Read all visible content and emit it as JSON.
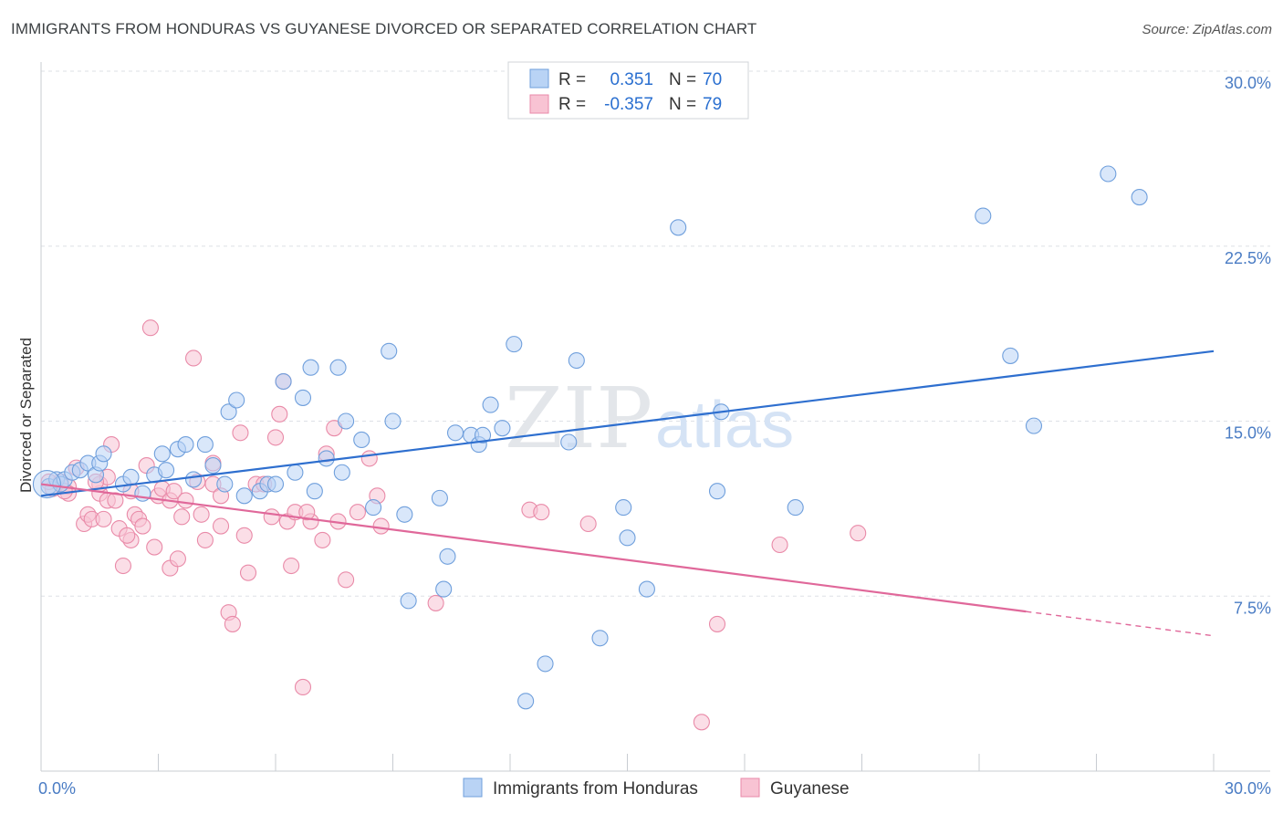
{
  "title": "IMMIGRANTS FROM HONDURAS VS GUYANESE DIVORCED OR SEPARATED CORRELATION CHART",
  "source": "Source: ZipAtlas.com",
  "watermark": {
    "zip": "ZIP",
    "atlas": "atlas"
  },
  "colors": {
    "blue_fill": "#b9d3f5",
    "blue_stroke": "#6f9fdc",
    "blue_line": "#2e6fcf",
    "pink_fill": "#f8c3d3",
    "pink_stroke": "#e98aa8",
    "pink_line": "#e0689a",
    "grid": "#dde1e6",
    "tick_text": "#4a7cc4"
  },
  "legend": {
    "rows": [
      {
        "r_label": "R =",
        "r_value": "0.351",
        "n_label": "N =",
        "n_value": "70"
      },
      {
        "r_label": "R =",
        "r_value": "-0.357",
        "n_label": "N =",
        "n_value": "79"
      }
    ]
  },
  "chart_data": {
    "type": "scatter",
    "ylabel": "Divorced or Separated",
    "xlim": [
      0,
      30
    ],
    "ylim": [
      0,
      30
    ],
    "y_ticks": [
      {
        "value": 7.5,
        "label": "7.5%"
      },
      {
        "value": 15,
        "label": "15.0%"
      },
      {
        "value": 22.5,
        "label": "22.5%"
      },
      {
        "value": 30,
        "label": "30.0%"
      }
    ],
    "x_ticks": [
      {
        "value": 0,
        "label": "0.0%"
      },
      {
        "value": 30,
        "label": "30.0%"
      }
    ],
    "series": [
      {
        "name": "Immigrants from Honduras",
        "color": "blue",
        "trend": {
          "x0": 0,
          "y0": 11.8,
          "x1": 30,
          "y1": 18.0,
          "solid_until": 30
        },
        "points": [
          [
            0.2,
            12.2
          ],
          [
            0.4,
            12.5
          ],
          [
            0.5,
            12.3
          ],
          [
            0.6,
            12.5
          ],
          [
            0.8,
            12.8
          ],
          [
            1.0,
            12.9
          ],
          [
            1.2,
            13.2
          ],
          [
            1.4,
            12.7
          ],
          [
            1.5,
            13.2
          ],
          [
            1.6,
            13.6
          ],
          [
            2.1,
            12.3
          ],
          [
            2.3,
            12.6
          ],
          [
            2.6,
            11.9
          ],
          [
            2.9,
            12.7
          ],
          [
            3.1,
            13.6
          ],
          [
            3.2,
            12.9
          ],
          [
            3.5,
            13.8
          ],
          [
            3.7,
            14.0
          ],
          [
            3.9,
            12.5
          ],
          [
            4.2,
            14.0
          ],
          [
            4.4,
            13.1
          ],
          [
            4.7,
            12.3
          ],
          [
            4.8,
            15.4
          ],
          [
            5.0,
            15.9
          ],
          [
            5.2,
            11.8
          ],
          [
            5.6,
            12.0
          ],
          [
            5.8,
            12.3
          ],
          [
            6.0,
            12.3
          ],
          [
            6.2,
            16.7
          ],
          [
            6.5,
            12.8
          ],
          [
            6.7,
            16.0
          ],
          [
            6.9,
            17.3
          ],
          [
            7.0,
            12.0
          ],
          [
            7.3,
            13.4
          ],
          [
            7.6,
            17.3
          ],
          [
            7.7,
            12.8
          ],
          [
            7.8,
            15.0
          ],
          [
            8.2,
            14.2
          ],
          [
            8.5,
            11.3
          ],
          [
            8.9,
            18.0
          ],
          [
            9.0,
            15.0
          ],
          [
            9.3,
            11.0
          ],
          [
            9.4,
            7.3
          ],
          [
            10.2,
            11.7
          ],
          [
            10.3,
            7.8
          ],
          [
            10.4,
            9.2
          ],
          [
            10.6,
            14.5
          ],
          [
            11.0,
            14.4
          ],
          [
            11.2,
            14.0
          ],
          [
            11.3,
            14.4
          ],
          [
            11.5,
            15.7
          ],
          [
            11.8,
            14.7
          ],
          [
            12.1,
            18.3
          ],
          [
            12.4,
            3.0
          ],
          [
            12.9,
            4.6
          ],
          [
            13.5,
            14.1
          ],
          [
            13.7,
            17.6
          ],
          [
            14.3,
            5.7
          ],
          [
            14.9,
            11.3
          ],
          [
            15.0,
            10.0
          ],
          [
            15.5,
            7.8
          ],
          [
            16.3,
            23.3
          ],
          [
            17.3,
            12.0
          ],
          [
            17.4,
            15.4
          ],
          [
            19.3,
            11.3
          ],
          [
            24.1,
            23.8
          ],
          [
            24.8,
            17.8
          ],
          [
            25.4,
            14.8
          ],
          [
            27.3,
            25.6
          ],
          [
            28.1,
            24.6
          ]
        ]
      },
      {
        "name": "Guyanese",
        "color": "pink",
        "trend": {
          "x0": 0,
          "y0": 12.3,
          "x1": 30,
          "y1": 5.8,
          "solid_until": 25.2
        },
        "points": [
          [
            0.3,
            12.1
          ],
          [
            0.5,
            12.4
          ],
          [
            0.7,
            12.2
          ],
          [
            0.7,
            11.9
          ],
          [
            0.9,
            13.0
          ],
          [
            1.1,
            10.6
          ],
          [
            1.2,
            11.0
          ],
          [
            1.3,
            10.8
          ],
          [
            1.5,
            11.9
          ],
          [
            1.5,
            12.3
          ],
          [
            1.6,
            10.8
          ],
          [
            1.7,
            12.6
          ],
          [
            1.7,
            11.6
          ],
          [
            1.8,
            14.0
          ],
          [
            1.9,
            11.6
          ],
          [
            2.0,
            10.4
          ],
          [
            2.1,
            8.8
          ],
          [
            2.3,
            12.0
          ],
          [
            2.3,
            9.9
          ],
          [
            2.4,
            11.0
          ],
          [
            2.5,
            10.8
          ],
          [
            2.6,
            10.5
          ],
          [
            2.7,
            13.1
          ],
          [
            2.8,
            19.0
          ],
          [
            2.9,
            9.6
          ],
          [
            3.0,
            11.8
          ],
          [
            3.1,
            12.1
          ],
          [
            3.3,
            11.6
          ],
          [
            3.3,
            8.7
          ],
          [
            3.4,
            12.0
          ],
          [
            3.5,
            9.1
          ],
          [
            3.7,
            11.6
          ],
          [
            3.9,
            17.7
          ],
          [
            4.1,
            11.0
          ],
          [
            4.2,
            9.9
          ],
          [
            4.4,
            13.2
          ],
          [
            4.4,
            12.3
          ],
          [
            4.6,
            11.8
          ],
          [
            4.6,
            10.5
          ],
          [
            4.8,
            6.8
          ],
          [
            4.9,
            6.3
          ],
          [
            5.1,
            14.5
          ],
          [
            5.2,
            10.1
          ],
          [
            5.3,
            8.5
          ],
          [
            5.5,
            12.3
          ],
          [
            5.9,
            10.9
          ],
          [
            6.0,
            14.3
          ],
          [
            6.1,
            15.3
          ],
          [
            6.2,
            16.7
          ],
          [
            6.3,
            10.7
          ],
          [
            6.4,
            8.8
          ],
          [
            6.5,
            11.1
          ],
          [
            6.7,
            3.6
          ],
          [
            6.9,
            10.7
          ],
          [
            7.3,
            13.6
          ],
          [
            7.5,
            14.7
          ],
          [
            7.6,
            10.7
          ],
          [
            7.8,
            8.2
          ],
          [
            8.1,
            11.1
          ],
          [
            8.4,
            13.4
          ],
          [
            8.6,
            11.8
          ],
          [
            8.7,
            10.5
          ],
          [
            10.1,
            7.2
          ],
          [
            12.5,
            11.2
          ],
          [
            12.8,
            11.1
          ],
          [
            14.0,
            10.6
          ],
          [
            16.9,
            2.1
          ],
          [
            17.3,
            6.3
          ],
          [
            18.9,
            9.7
          ],
          [
            20.9,
            10.2
          ],
          [
            0.2,
            12.4
          ],
          [
            0.6,
            12.0
          ],
          [
            1.4,
            12.4
          ],
          [
            2.2,
            10.1
          ],
          [
            3.6,
            10.9
          ],
          [
            4.0,
            12.4
          ],
          [
            5.7,
            12.3
          ],
          [
            6.8,
            11.1
          ],
          [
            7.2,
            9.9
          ]
        ]
      }
    ]
  }
}
